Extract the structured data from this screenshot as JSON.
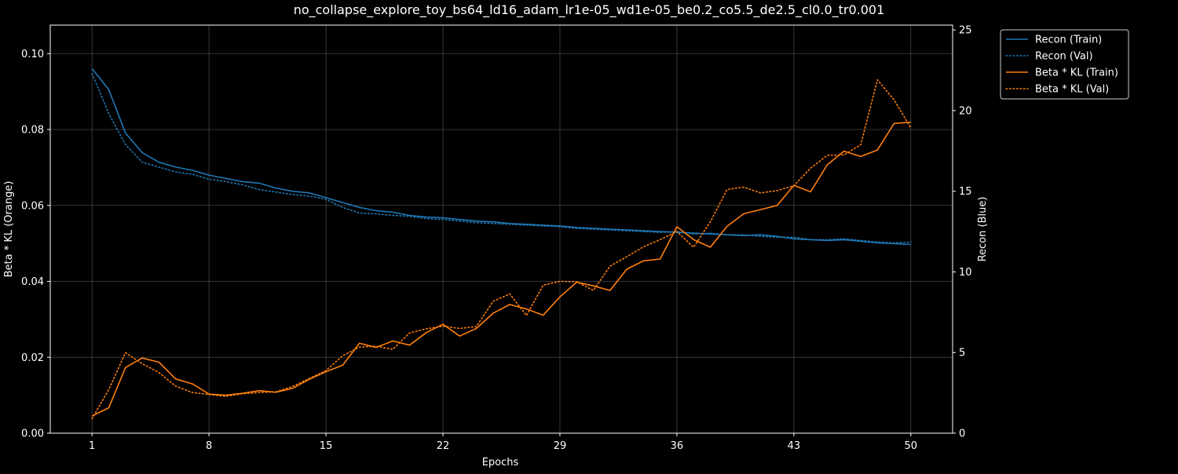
{
  "chart_data": {
    "type": "line",
    "title": "no_collapse_explore_toy_bs64_ld16_adam_lr1e-05_wd1e-05_be0.2_co5.5_de2.5_cl0.0_tr0.001",
    "xlabel": "Epochs",
    "ylabel_left": "Beta * KL (Orange)",
    "ylabel_right": "Recon (Blue)",
    "xlim": [
      -1.5,
      52.5
    ],
    "ylim_left": [
      0,
      0.1075
    ],
    "ylim_right": [
      0,
      25.3
    ],
    "x_ticks": [
      1,
      8,
      15,
      22,
      29,
      36,
      43,
      50
    ],
    "x_tick_labels": [
      "1",
      "8",
      "15",
      "22",
      "29",
      "36",
      "43",
      "50"
    ],
    "y_left_ticks": [
      0,
      0.02,
      0.04,
      0.06,
      0.08,
      0.1
    ],
    "y_left_tick_labels": [
      "0.00",
      "0.02",
      "0.04",
      "0.06",
      "0.08",
      "0.10"
    ],
    "y_right_ticks": [
      0,
      5,
      10,
      15,
      20,
      25
    ],
    "y_right_tick_labels": [
      "0",
      "5",
      "10",
      "15",
      "20",
      "25"
    ],
    "grid": true,
    "legend_position": "outside-top-right",
    "colors": {
      "blue": "#1f77b4",
      "orange": "#ff7f0e"
    },
    "x": [
      1,
      2,
      3,
      4,
      5,
      6,
      7,
      8,
      9,
      10,
      11,
      12,
      13,
      14,
      15,
      16,
      17,
      18,
      19,
      20,
      21,
      22,
      23,
      24,
      25,
      26,
      27,
      28,
      29,
      30,
      31,
      32,
      33,
      34,
      35,
      36,
      37,
      38,
      39,
      40,
      41,
      42,
      43,
      44,
      45,
      46,
      47,
      48,
      49,
      50
    ],
    "series": [
      {
        "name": "Recon (Train)",
        "axis": "right",
        "color": "#1f77b4",
        "style": "solid",
        "values": [
          22.6,
          21.3,
          18.6,
          17.4,
          16.8,
          16.5,
          16.3,
          16.0,
          15.8,
          15.6,
          15.5,
          15.2,
          15.0,
          14.9,
          14.6,
          14.3,
          14.0,
          13.8,
          13.7,
          13.5,
          13.4,
          13.35,
          13.25,
          13.15,
          13.1,
          13.0,
          12.95,
          12.9,
          12.85,
          12.75,
          12.7,
          12.65,
          12.6,
          12.55,
          12.5,
          12.45,
          12.4,
          12.35,
          12.3,
          12.25,
          12.3,
          12.2,
          12.05,
          12.0,
          11.95,
          12.0,
          11.9,
          11.8,
          11.75,
          11.7
        ]
      },
      {
        "name": "Recon (Val)",
        "axis": "right",
        "color": "#1f77b4",
        "style": "dotted",
        "values": [
          22.3,
          19.8,
          17.9,
          16.8,
          16.5,
          16.2,
          16.05,
          15.75,
          15.6,
          15.4,
          15.1,
          14.95,
          14.8,
          14.7,
          14.5,
          14.0,
          13.65,
          13.6,
          13.5,
          13.45,
          13.3,
          13.25,
          13.15,
          13.05,
          13.0,
          12.95,
          12.9,
          12.85,
          12.8,
          12.7,
          12.65,
          12.6,
          12.55,
          12.5,
          12.45,
          12.5,
          12.35,
          12.4,
          12.3,
          12.3,
          12.2,
          12.15,
          12.15,
          12.0,
          12.0,
          12.05,
          11.95,
          11.85,
          11.8,
          11.85
        ]
      },
      {
        "name": "Beta * KL (Train)",
        "axis": "left",
        "color": "#ff7f0e",
        "style": "solid",
        "values": [
          0.0045,
          0.0067,
          0.0173,
          0.0198,
          0.0187,
          0.0143,
          0.013,
          0.0103,
          0.01,
          0.0105,
          0.0112,
          0.0108,
          0.0118,
          0.0142,
          0.0162,
          0.0179,
          0.0237,
          0.0226,
          0.0243,
          0.0232,
          0.0265,
          0.0287,
          0.0256,
          0.0276,
          0.0316,
          0.0339,
          0.0327,
          0.0311,
          0.0359,
          0.0398,
          0.0388,
          0.0376,
          0.0432,
          0.0454,
          0.0459,
          0.0544,
          0.051,
          0.049,
          0.0545,
          0.0578,
          0.0589,
          0.06,
          0.0653,
          0.0636,
          0.0707,
          0.0743,
          0.0729,
          0.0746,
          0.0816,
          0.0819
        ]
      },
      {
        "name": "Beta * KL (Val)",
        "axis": "left",
        "color": "#ff7f0e",
        "style": "dotted",
        "values": [
          0.0038,
          0.0115,
          0.0212,
          0.0183,
          0.016,
          0.0124,
          0.0107,
          0.0102,
          0.0097,
          0.0104,
          0.0107,
          0.0109,
          0.0123,
          0.0144,
          0.0165,
          0.0204,
          0.0227,
          0.0229,
          0.0221,
          0.0264,
          0.0275,
          0.0282,
          0.0276,
          0.0281,
          0.0347,
          0.0367,
          0.031,
          0.039,
          0.04,
          0.0399,
          0.0376,
          0.044,
          0.0465,
          0.0491,
          0.051,
          0.0531,
          0.049,
          0.0557,
          0.0642,
          0.0648,
          0.0633,
          0.0639,
          0.0652,
          0.0698,
          0.0732,
          0.0733,
          0.076,
          0.0931,
          0.0878,
          0.0804
        ]
      }
    ]
  }
}
